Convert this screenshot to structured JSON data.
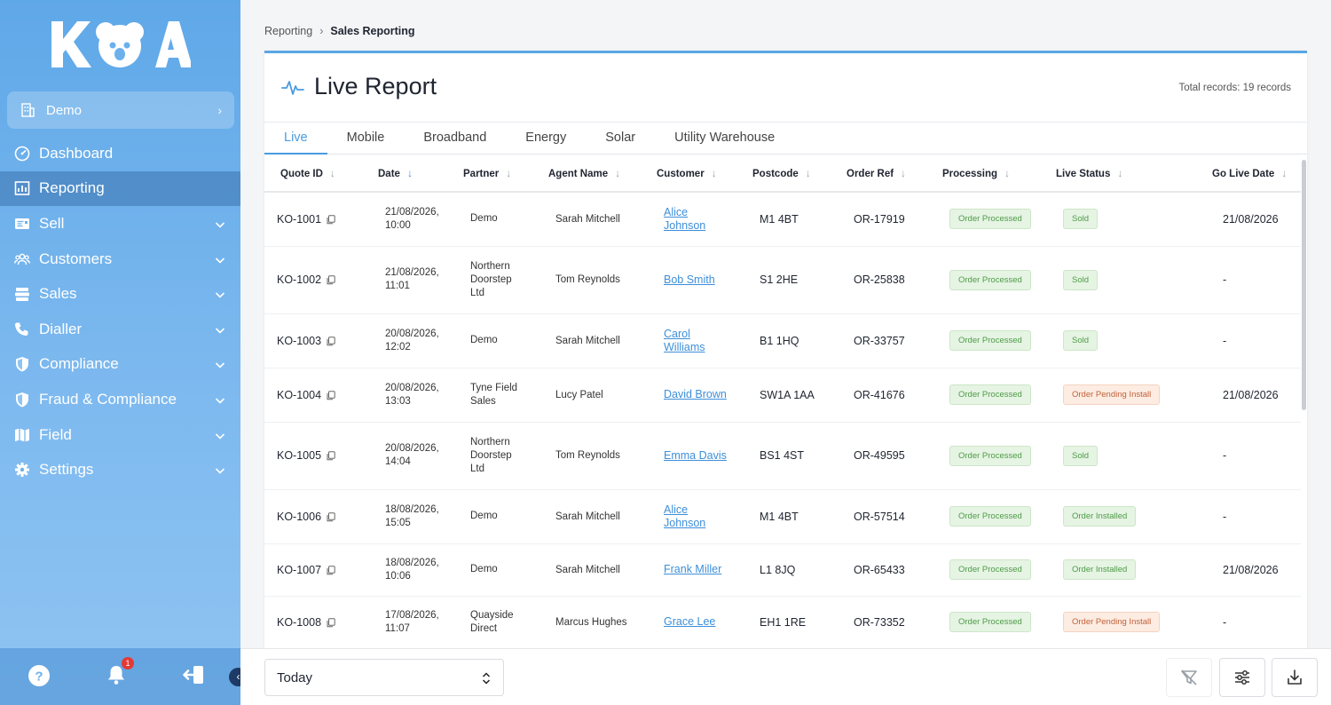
{
  "brand": {
    "logo_text": "KOA"
  },
  "workspace": {
    "label": "Demo"
  },
  "nav": [
    {
      "label": "Dashboard",
      "icon": "dashboard-icon",
      "expandable": false,
      "active": false
    },
    {
      "label": "Reporting",
      "icon": "reporting-icon",
      "expandable": false,
      "active": true
    },
    {
      "label": "Sell",
      "icon": "sell-icon",
      "expandable": true,
      "active": false
    },
    {
      "label": "Customers",
      "icon": "customers-icon",
      "expandable": true,
      "active": false
    },
    {
      "label": "Sales",
      "icon": "sales-icon",
      "expandable": true,
      "active": false
    },
    {
      "label": "Dialler",
      "icon": "phone-icon",
      "expandable": true,
      "active": false
    },
    {
      "label": "Compliance",
      "icon": "shield-icon",
      "expandable": true,
      "active": false
    },
    {
      "label": "Fraud & Compliance",
      "icon": "shield-icon",
      "expandable": true,
      "active": false
    },
    {
      "label": "Field",
      "icon": "map-icon",
      "expandable": true,
      "active": false
    },
    {
      "label": "Settings",
      "icon": "gear-icon",
      "expandable": true,
      "active": false
    }
  ],
  "notifications": {
    "count": "1"
  },
  "breadcrumb": {
    "parent": "Reporting",
    "current": "Sales Reporting"
  },
  "report": {
    "title": "Live Report",
    "total": "Total records: 19 records"
  },
  "tabs": [
    {
      "label": "Live",
      "active": true
    },
    {
      "label": "Mobile",
      "active": false
    },
    {
      "label": "Broadband",
      "active": false
    },
    {
      "label": "Energy",
      "active": false
    },
    {
      "label": "Solar",
      "active": false
    },
    {
      "label": "Utility Warehouse",
      "active": false
    }
  ],
  "table": {
    "columns": [
      "Quote ID",
      "Date",
      "Partner",
      "Agent Name",
      "Customer",
      "Postcode",
      "Order Ref",
      "Processing",
      "Live Status",
      "Go Live Date"
    ],
    "rows": [
      {
        "quote": "KO-1001",
        "date": [
          "21/08/2026,",
          "10:00"
        ],
        "partner": [
          "Demo"
        ],
        "agent": "Sarah Mitchell",
        "customer": [
          "Alice",
          "Johnson"
        ],
        "postcode": "M1 4BT",
        "order": "OR-17919",
        "processing": "Order Processed",
        "status": "Sold",
        "status_tone": "green",
        "golive": "21/08/2026"
      },
      {
        "quote": "KO-1002",
        "date": [
          "21/08/2026,",
          "11:01"
        ],
        "partner": [
          "Northern",
          "Doorstep",
          "Ltd"
        ],
        "agent": "Tom Reynolds",
        "customer": [
          "Bob Smith"
        ],
        "postcode": "S1 2HE",
        "order": "OR-25838",
        "processing": "Order Processed",
        "status": "Sold",
        "status_tone": "green",
        "golive": "-"
      },
      {
        "quote": "KO-1003",
        "date": [
          "20/08/2026,",
          "12:02"
        ],
        "partner": [
          "Demo"
        ],
        "agent": "Sarah Mitchell",
        "customer": [
          "Carol",
          "Williams"
        ],
        "postcode": "B1 1HQ",
        "order": "OR-33757",
        "processing": "Order Processed",
        "status": "Sold",
        "status_tone": "green",
        "golive": "-"
      },
      {
        "quote": "KO-1004",
        "date": [
          "20/08/2026,",
          "13:03"
        ],
        "partner": [
          "Tyne Field",
          "Sales"
        ],
        "agent": "Lucy Patel",
        "customer": [
          "David Brown"
        ],
        "postcode": "SW1A 1AA",
        "order": "OR-41676",
        "processing": "Order Processed",
        "status": "Order Pending Install",
        "status_tone": "orange",
        "golive": "21/08/2026"
      },
      {
        "quote": "KO-1005",
        "date": [
          "20/08/2026,",
          "14:04"
        ],
        "partner": [
          "Northern",
          "Doorstep",
          "Ltd"
        ],
        "agent": "Tom Reynolds",
        "customer": [
          "Emma Davis"
        ],
        "postcode": "BS1 4ST",
        "order": "OR-49595",
        "processing": "Order Processed",
        "status": "Sold",
        "status_tone": "green",
        "golive": "-"
      },
      {
        "quote": "KO-1006",
        "date": [
          "18/08/2026,",
          "15:05"
        ],
        "partner": [
          "Demo"
        ],
        "agent": "Sarah Mitchell",
        "customer": [
          "Alice",
          "Johnson"
        ],
        "postcode": "M1 4BT",
        "order": "OR-57514",
        "processing": "Order Processed",
        "status": "Order Installed",
        "status_tone": "green",
        "golive": "-"
      },
      {
        "quote": "KO-1007",
        "date": [
          "18/08/2026,",
          "10:06"
        ],
        "partner": [
          "Demo"
        ],
        "agent": "Sarah Mitchell",
        "customer": [
          "Frank Miller"
        ],
        "postcode": "L1 8JQ",
        "order": "OR-65433",
        "processing": "Order Processed",
        "status": "Order Installed",
        "status_tone": "green",
        "golive": "21/08/2026"
      },
      {
        "quote": "KO-1008",
        "date": [
          "17/08/2026,",
          "11:07"
        ],
        "partner": [
          "Quayside",
          "Direct"
        ],
        "agent": "Marcus Hughes",
        "customer": [
          "Grace Lee"
        ],
        "postcode": "EH1 1RE",
        "order": "OR-73352",
        "processing": "Order Processed",
        "status": "Order Pending Install",
        "status_tone": "orange",
        "golive": "-"
      }
    ]
  },
  "filter": {
    "period": "Today"
  },
  "colors": {
    "accent": "#4a9be0",
    "sidebar": "#6cb0ec",
    "green_pill": "#e5f4e3",
    "orange_pill": "#fdece2"
  }
}
